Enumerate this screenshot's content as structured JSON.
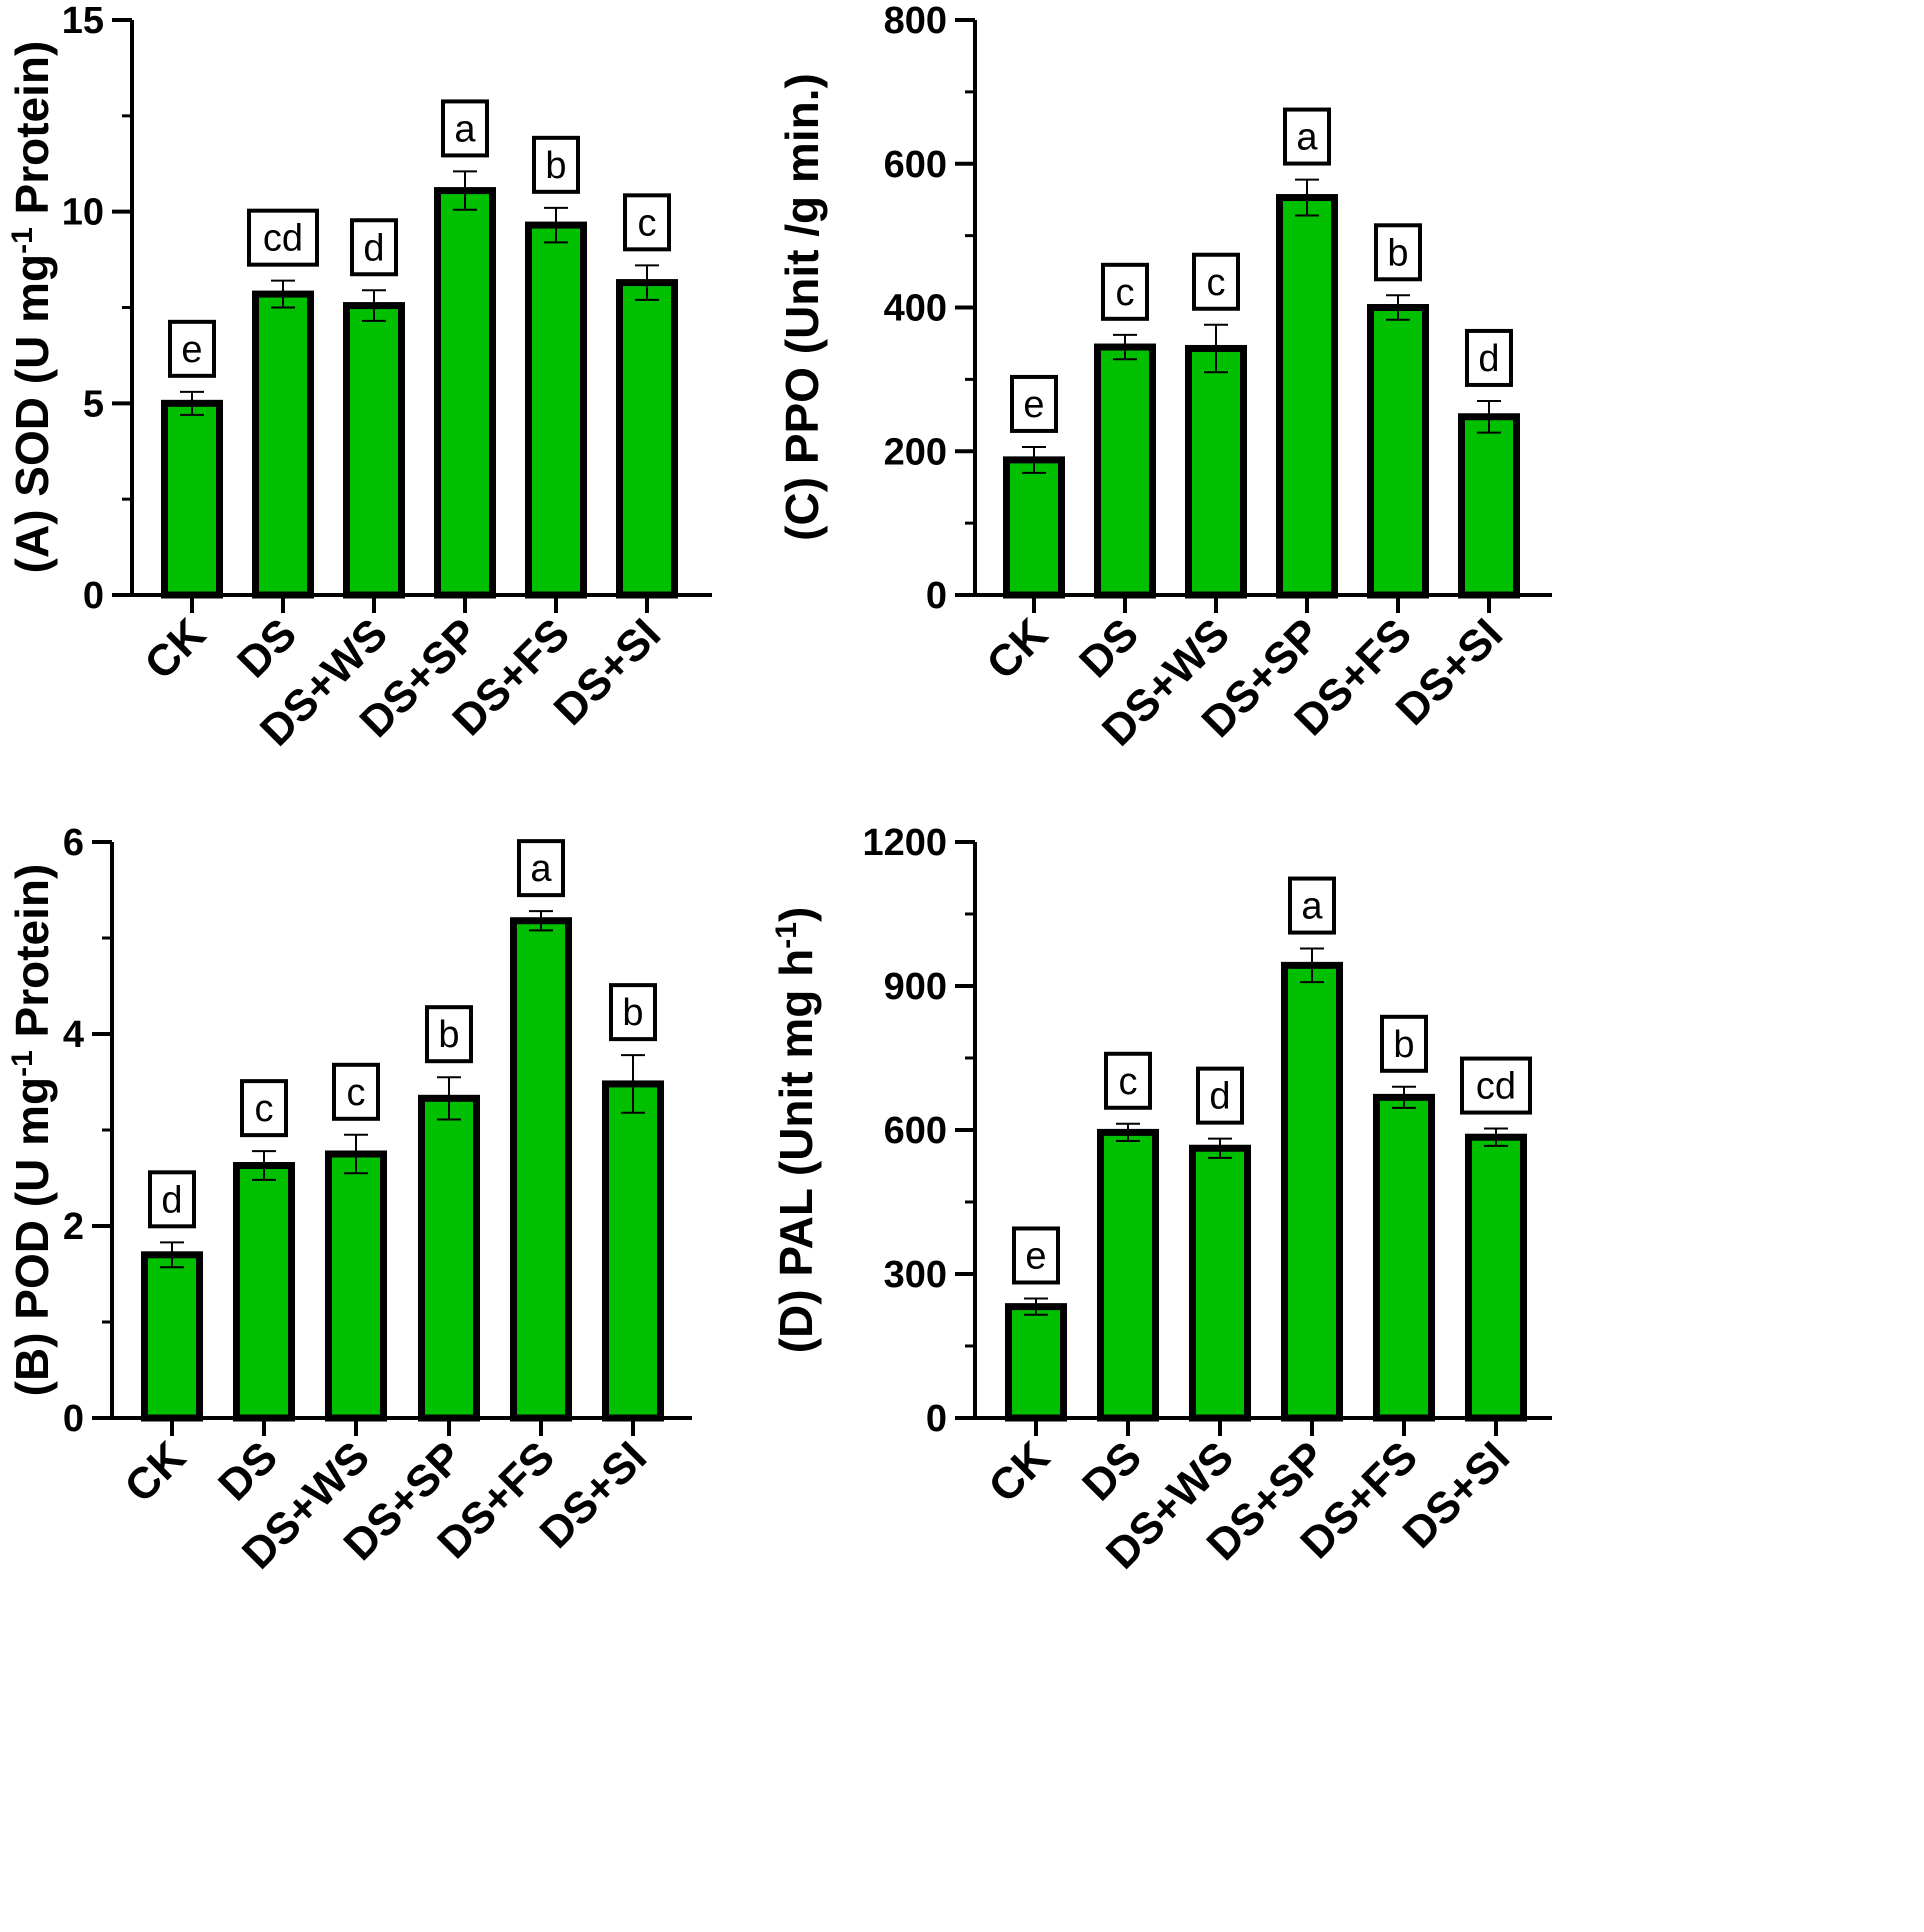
{
  "chart_data": [
    {
      "id": "A",
      "type": "bar",
      "ylabel_parts": [
        "(A) SOD (U mg",
        "-1",
        " Protein)"
      ],
      "categories": [
        "CK",
        "DS",
        "DS+WS",
        "DS+SP",
        "DS+FS",
        "DS+SI"
      ],
      "values": [
        5.0,
        7.85,
        7.55,
        10.55,
        9.65,
        8.15
      ],
      "errors": [
        0.3,
        0.35,
        0.4,
        0.5,
        0.45,
        0.45
      ],
      "letters": [
        "e",
        "cd",
        "d",
        "a",
        "b",
        "c"
      ],
      "ylim": [
        0,
        15
      ],
      "major_ticks": [
        0,
        5,
        10,
        15
      ],
      "minor_step": 2.5,
      "bar_color": "#00c000"
    },
    {
      "id": "C",
      "type": "bar",
      "ylabel_parts": [
        "(C) PPO (Unit /g min.)"
      ],
      "categories": [
        "CK",
        "DS",
        "DS+WS",
        "DS+SP",
        "DS+FS",
        "DS+SI"
      ],
      "values": [
        188,
        345,
        343,
        553,
        400,
        248
      ],
      "errors": [
        18,
        17,
        33,
        25,
        17,
        22
      ],
      "letters": [
        "e",
        "c",
        "c",
        "a",
        "b",
        "d"
      ],
      "ylim": [
        0,
        800
      ],
      "major_ticks": [
        0,
        200,
        400,
        600,
        800
      ],
      "minor_step": 100,
      "bar_color": "#00c000"
    },
    {
      "id": "B",
      "type": "bar",
      "ylabel_parts": [
        "(B) POD (U mg",
        "-1",
        " Protein)"
      ],
      "categories": [
        "CK",
        "DS",
        "DS+WS",
        "DS+SP",
        "DS+FS",
        "DS+SI"
      ],
      "values": [
        1.7,
        2.63,
        2.75,
        3.33,
        5.18,
        3.48
      ],
      "errors": [
        0.13,
        0.15,
        0.2,
        0.22,
        0.1,
        0.3
      ],
      "letters": [
        "d",
        "c",
        "c",
        "b",
        "a",
        "b"
      ],
      "ylim": [
        0,
        6
      ],
      "major_ticks": [
        0,
        2,
        4,
        6
      ],
      "minor_step": 1,
      "bar_color": "#00c000"
    },
    {
      "id": "D",
      "type": "bar",
      "ylabel_parts": [
        "(D) PAL (Unit mg h",
        "-1",
        ")"
      ],
      "categories": [
        "CK",
        "DS",
        "DS+WS",
        "DS+SP",
        "DS+FS",
        "DS+SI"
      ],
      "values": [
        232,
        595,
        562,
        943,
        668,
        585
      ],
      "errors": [
        17,
        18,
        20,
        35,
        22,
        18
      ],
      "letters": [
        "e",
        "c",
        "d",
        "a",
        "b",
        "cd"
      ],
      "ylim": [
        0,
        1200
      ],
      "major_ticks": [
        0,
        300,
        600,
        900,
        1200
      ],
      "minor_step": 150,
      "bar_color": "#00c000"
    }
  ]
}
